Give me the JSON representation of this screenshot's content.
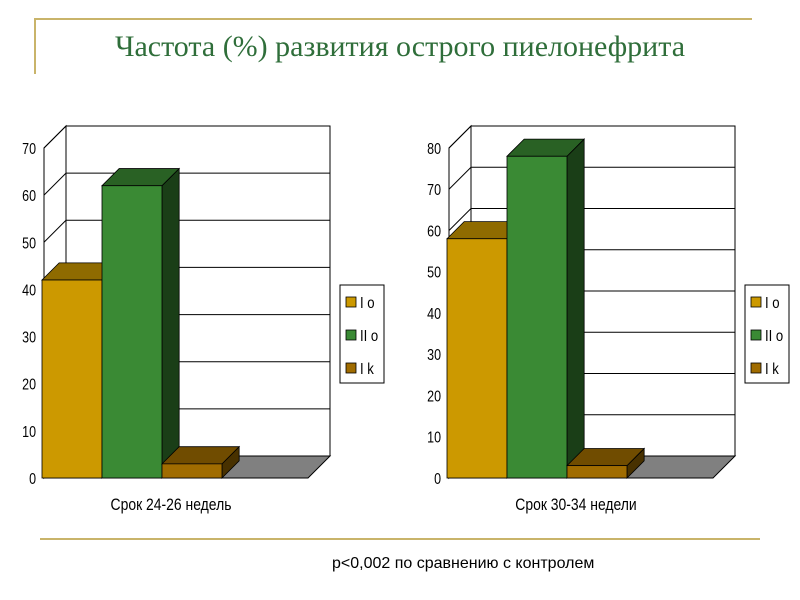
{
  "title": "Частота (%) развития острого пиелонефрита",
  "note": "p<0,002 по сравнению  с контролем",
  "colors": {
    "I o": "#cc9900",
    "II o": "#3a8a34",
    "I k": "#a06c00",
    "floor": "#808080"
  },
  "chart_data": [
    {
      "type": "bar",
      "categories": [
        "Срок 24-26 недель"
      ],
      "series": [
        {
          "name": "I o",
          "values": [
            42
          ]
        },
        {
          "name": "II o",
          "values": [
            62
          ]
        },
        {
          "name": "I k",
          "values": [
            3
          ]
        }
      ],
      "ylim": [
        0,
        70
      ],
      "yticks": [
        "0",
        "10",
        "20",
        "30",
        "40",
        "50",
        "60",
        "70"
      ],
      "grid": true,
      "legend": "right"
    },
    {
      "type": "bar",
      "categories": [
        "Срок 30-34 недели"
      ],
      "series": [
        {
          "name": "I o",
          "values": [
            58
          ]
        },
        {
          "name": "II o",
          "values": [
            78
          ]
        },
        {
          "name": "I k",
          "values": [
            3
          ]
        }
      ],
      "ylim": [
        0,
        80
      ],
      "yticks": [
        "0",
        "10",
        "20",
        "30",
        "40",
        "50",
        "60",
        "70",
        "80"
      ],
      "grid": true,
      "legend": "right"
    }
  ]
}
